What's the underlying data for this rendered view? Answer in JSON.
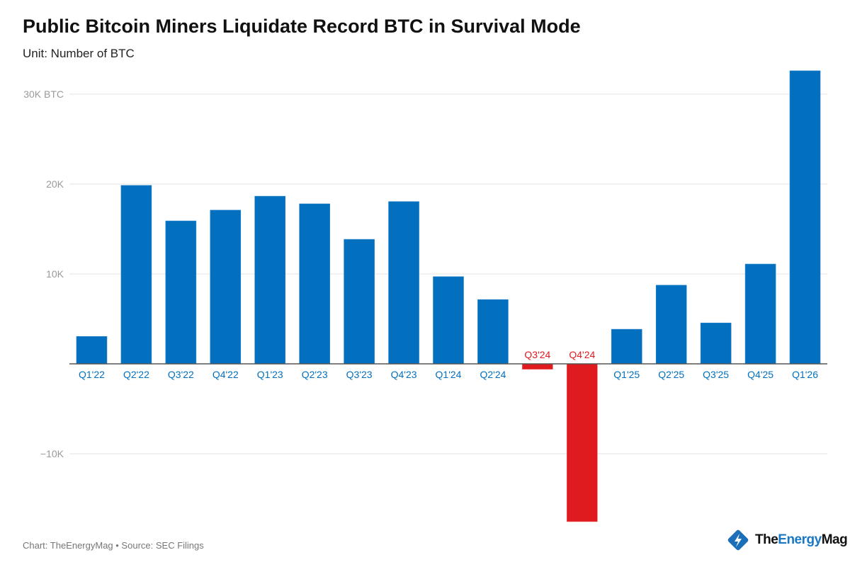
{
  "title": "Public Bitcoin Miners Liquidate Record BTC in Survival Mode",
  "subtitle": "Unit: Number of BTC",
  "footer": "Chart: TheEnergyMag • Source: SEC Filings",
  "logo": {
    "part1": "The",
    "part2": "Energy",
    "part3": "Mag",
    "icon": "lightning-diamond-icon"
  },
  "colors": {
    "positive": "#0270bf",
    "negative": "#e01b1f",
    "grid": "#e3e3e3",
    "axis_text": "#9a9a9a"
  },
  "chart_data": {
    "type": "bar",
    "title": "Public Bitcoin Miners Liquidate Record BTC in Survival Mode",
    "ylabel": "Unit: Number of BTC",
    "categories": [
      "Q1'22",
      "Q2'22",
      "Q3'22",
      "Q4'22",
      "Q1'23",
      "Q2'23",
      "Q3'23",
      "Q4'23",
      "Q1'24",
      "Q2'24",
      "Q3'24",
      "Q4'24",
      "Q1'25",
      "Q2'25",
      "Q3'25",
      "Q4'25",
      "Q1'26"
    ],
    "values": [
      3050,
      19850,
      15900,
      17100,
      18650,
      17800,
      13850,
      18050,
      9700,
      7150,
      -600,
      -17550,
      3850,
      8750,
      4550,
      11100,
      32600
    ],
    "ylim": [
      -18000,
      33000
    ],
    "yticks": [
      {
        "value": -10000,
        "label": "−10K"
      },
      {
        "value": 10000,
        "label": "10K"
      },
      {
        "value": 20000,
        "label": "20K"
      },
      {
        "value": 30000,
        "label": "30K BTC"
      }
    ],
    "grid": true,
    "legend": "none"
  }
}
